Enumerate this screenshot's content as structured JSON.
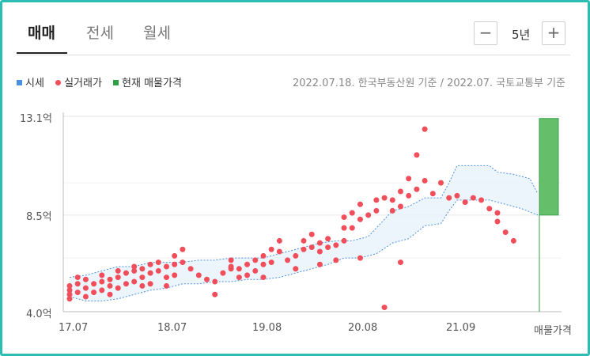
{
  "tabs": [
    {
      "label": "매매",
      "active": true
    },
    {
      "label": "전세",
      "active": false
    },
    {
      "label": "월세",
      "active": false
    }
  ],
  "period": {
    "label": "5년",
    "decrease_icon": "minus-icon",
    "increase_icon": "plus-icon"
  },
  "legend": [
    {
      "label": "시세",
      "color": "#4a90e2",
      "shape": "square"
    },
    {
      "label": "실거래가",
      "color": "#ef4e5a",
      "shape": "circle"
    },
    {
      "label": "현재 매물가격",
      "color": "#2ea043",
      "shape": "square"
    }
  ],
  "source_note": "2022.07.18. 한국부동산원 기준 / 2022.07. 국토교통부 기준",
  "chart_data": {
    "type": "scatter",
    "title": "",
    "xlabel": "",
    "ylabel": "",
    "y_unit": "억",
    "y_ticks": [
      "13.1억",
      "8.5억",
      "4.0억"
    ],
    "y_tick_values": [
      13.1,
      8.5,
      4.0
    ],
    "ylim": [
      4.0,
      13.1
    ],
    "x_tick_labels": [
      "17.07",
      "18.07",
      "19.08",
      "20.08",
      "21.09",
      "매물가격"
    ],
    "grid": true,
    "band": {
      "name": "시세",
      "upper": [
        [
          0,
          5.6
        ],
        [
          2,
          5.7
        ],
        [
          4,
          5.9
        ],
        [
          6,
          6.1
        ],
        [
          8,
          6.1
        ],
        [
          10,
          6.3
        ],
        [
          12,
          6.3
        ],
        [
          14,
          6.3
        ],
        [
          16,
          6.4
        ],
        [
          18,
          6.4
        ],
        [
          20,
          6.5
        ],
        [
          22,
          6.5
        ],
        [
          24,
          6.5
        ],
        [
          25,
          6.6
        ],
        [
          27,
          6.8
        ],
        [
          29,
          7.0
        ],
        [
          31,
          7.2
        ],
        [
          33,
          7.3
        ],
        [
          35,
          7.3
        ],
        [
          37,
          7.5
        ],
        [
          38,
          7.9
        ],
        [
          40,
          8.7
        ],
        [
          42,
          8.9
        ],
        [
          44,
          9.3
        ],
        [
          46,
          9.3
        ],
        [
          47,
          10.0
        ],
        [
          48,
          10.8
        ],
        [
          52,
          10.8
        ],
        [
          53,
          10.5
        ],
        [
          55,
          10.4
        ],
        [
          57,
          10.2
        ],
        [
          58,
          9.5
        ]
      ],
      "lower": [
        [
          0,
          4.7
        ],
        [
          2,
          4.5
        ],
        [
          4,
          4.5
        ],
        [
          6,
          4.6
        ],
        [
          8,
          4.8
        ],
        [
          10,
          5.0
        ],
        [
          12,
          5.1
        ],
        [
          14,
          5.3
        ],
        [
          16,
          5.3
        ],
        [
          18,
          5.4
        ],
        [
          20,
          5.4
        ],
        [
          22,
          5.5
        ],
        [
          24,
          5.5
        ],
        [
          26,
          5.6
        ],
        [
          28,
          5.8
        ],
        [
          30,
          6.0
        ],
        [
          32,
          6.2
        ],
        [
          34,
          6.5
        ],
        [
          36,
          6.5
        ],
        [
          38,
          6.7
        ],
        [
          40,
          7.2
        ],
        [
          42,
          7.4
        ],
        [
          44,
          8.0
        ],
        [
          46,
          8.1
        ],
        [
          47,
          8.7
        ],
        [
          48,
          9.2
        ],
        [
          52,
          9.2
        ],
        [
          54,
          9.0
        ],
        [
          56,
          8.8
        ],
        [
          58,
          8.5
        ]
      ]
    },
    "transactions": [
      [
        0,
        4.6
      ],
      [
        0,
        4.8
      ],
      [
        0,
        5.0
      ],
      [
        0,
        5.2
      ],
      [
        1,
        4.9
      ],
      [
        1,
        5.3
      ],
      [
        1,
        5.6
      ],
      [
        2,
        4.7
      ],
      [
        2,
        5.1
      ],
      [
        2,
        5.5
      ],
      [
        3,
        4.9
      ],
      [
        3,
        5.3
      ],
      [
        4,
        5.0
      ],
      [
        4,
        5.4
      ],
      [
        4,
        5.7
      ],
      [
        5,
        4.8
      ],
      [
        5,
        5.2
      ],
      [
        5,
        5.5
      ],
      [
        6,
        5.1
      ],
      [
        6,
        5.6
      ],
      [
        6,
        5.9
      ],
      [
        7,
        5.3
      ],
      [
        7,
        5.8
      ],
      [
        8,
        5.4
      ],
      [
        8,
        5.9
      ],
      [
        8,
        6.1
      ],
      [
        9,
        5.6
      ],
      [
        9,
        6.0
      ],
      [
        10,
        5.3
      ],
      [
        10,
        5.8
      ],
      [
        10,
        6.2
      ],
      [
        11,
        5.9
      ],
      [
        11,
        6.3
      ],
      [
        12,
        5.2
      ],
      [
        12,
        5.6
      ],
      [
        12,
        6.1
      ],
      [
        13,
        5.7
      ],
      [
        13,
        6.2
      ],
      [
        13,
        6.6
      ],
      [
        14,
        6.3
      ],
      [
        14,
        6.9
      ],
      [
        16,
        5.7
      ],
      [
        17,
        5.5
      ],
      [
        18,
        4.8
      ],
      [
        18,
        5.4
      ],
      [
        19,
        5.8
      ],
      [
        20,
        6.1
      ],
      [
        20,
        6.4
      ],
      [
        21,
        5.6
      ],
      [
        21,
        6.0
      ],
      [
        22,
        6.2
      ],
      [
        22,
        5.7
      ],
      [
        23,
        6.4
      ],
      [
        23,
        5.9
      ],
      [
        24,
        6.2
      ],
      [
        24,
        5.6
      ],
      [
        24,
        6.6
      ],
      [
        25,
        6.9
      ],
      [
        25,
        6.3
      ],
      [
        26,
        7.3
      ],
      [
        26,
        6.8
      ],
      [
        27,
        6.4
      ],
      [
        28,
        6.6
      ],
      [
        28,
        6.0
      ],
      [
        29,
        6.9
      ],
      [
        29,
        7.3
      ],
      [
        30,
        7.0
      ],
      [
        30,
        7.6
      ],
      [
        31,
        7.2
      ],
      [
        31,
        6.8
      ],
      [
        32,
        7.4
      ],
      [
        32,
        7.0
      ],
      [
        33,
        7.1
      ],
      [
        34,
        7.3
      ],
      [
        34,
        7.9
      ],
      [
        34,
        8.4
      ],
      [
        35,
        7.9
      ],
      [
        35,
        8.6
      ],
      [
        36,
        9.0
      ],
      [
        36,
        8.3
      ],
      [
        37,
        8.5
      ],
      [
        38,
        8.7
      ],
      [
        38,
        9.2
      ],
      [
        39,
        9.3
      ],
      [
        40,
        9.2
      ],
      [
        40,
        8.7
      ],
      [
        41,
        9.6
      ],
      [
        41,
        8.9
      ],
      [
        42,
        10.2
      ],
      [
        42,
        9.4
      ],
      [
        43,
        11.3
      ],
      [
        43,
        9.7
      ],
      [
        44,
        12.5
      ],
      [
        44,
        10.1
      ],
      [
        45,
        9.5
      ],
      [
        46,
        10.0
      ],
      [
        47,
        9.3
      ],
      [
        48,
        9.4
      ],
      [
        49,
        9.1
      ],
      [
        50,
        9.3
      ],
      [
        51,
        9.2
      ],
      [
        52,
        8.8
      ],
      [
        53,
        8.2
      ],
      [
        53,
        8.6
      ],
      [
        54,
        7.7
      ],
      [
        55,
        7.3
      ],
      [
        31,
        6.2
      ],
      [
        33,
        6.4
      ],
      [
        36,
        6.5
      ],
      [
        39,
        4.2
      ],
      [
        41,
        6.3
      ],
      [
        20,
        6.0
      ],
      [
        15,
        6.0
      ],
      [
        9,
        5.2
      ]
    ],
    "current_listing": {
      "name": "현재 매물가격",
      "low": 8.5,
      "high": 13.0
    }
  }
}
